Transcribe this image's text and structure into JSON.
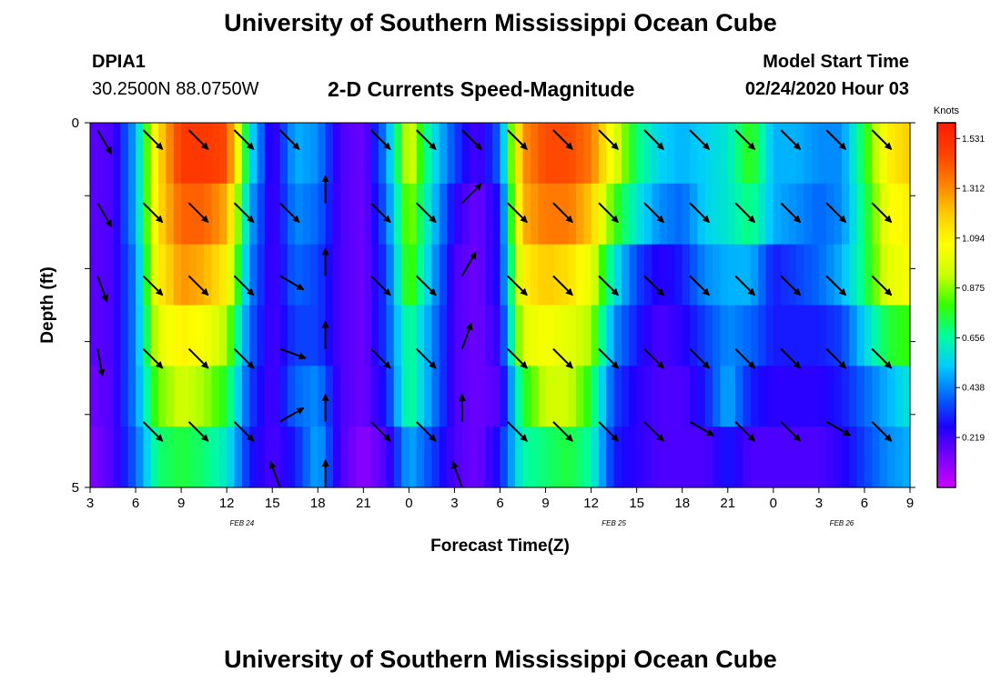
{
  "header": {
    "title": "University of Southern Mississippi Ocean Cube",
    "station_id": "DPIA1",
    "coords": "30.2500N 88.0750W",
    "chart_title": "2-D Currents Speed-Magnitude",
    "model_label": "Model Start Time",
    "model_time": "02/24/2020 Hour 03"
  },
  "footer": {
    "title": "University of Southern Mississippi Ocean Cube"
  },
  "chart_data": {
    "type": "heatmap",
    "title": "2-D Currents Speed-Magnitude",
    "xlabel": "Forecast Time(Z)",
    "ylabel": "Depth (ft)",
    "x_ticks": [
      "3",
      "6",
      "9",
      "12",
      "15",
      "18",
      "21",
      "0",
      "3",
      "6",
      "9",
      "12",
      "15",
      "18",
      "21",
      "0",
      "3",
      "6",
      "9"
    ],
    "x_hours": [
      0,
      3,
      6,
      9,
      12,
      15,
      18,
      21,
      24,
      27,
      30,
      33,
      36,
      39,
      42,
      45,
      48,
      51,
      54
    ],
    "x_range": [
      0,
      54
    ],
    "date_labels": [
      {
        "text": "FEB 24",
        "hour": 10
      },
      {
        "text": "FEB 25",
        "hour": 34.5
      },
      {
        "text": "FEB 26",
        "hour": 49.5
      }
    ],
    "y_range": [
      0,
      5
    ],
    "y_tick_labels": [
      "0",
      "5"
    ],
    "y_minor_ticks": [
      1,
      2,
      3,
      4
    ],
    "colorbar": {
      "unit": "Knots",
      "range": [
        0,
        1.6
      ],
      "labels": [
        "1.531",
        "1.312",
        "1.094",
        "0.875",
        "0.656",
        "0.438",
        "0.219"
      ],
      "label_values": [
        1.531,
        1.312,
        1.094,
        0.875,
        0.656,
        0.438,
        0.219
      ],
      "palette": [
        "#cc00ff",
        "#7a00ff",
        "#1e00ff",
        "#0066ff",
        "#00ccff",
        "#00ff99",
        "#33ff00",
        "#ccff00",
        "#ffff00",
        "#ffcc00",
        "#ff8000",
        "#ff4000",
        "#ff1a00"
      ]
    },
    "layer_depths_ft": [
      0.25,
      1.25,
      2.25,
      3.25,
      4.25,
      4.85
    ],
    "speed_hour_keys": [
      0,
      1.5,
      3,
      4.5,
      6,
      7.5,
      9,
      10.5,
      12,
      13.5,
      15,
      16.5,
      18,
      19.5,
      21,
      22.5,
      24,
      25.5,
      27,
      28.5,
      30,
      31.5,
      33,
      34.5,
      36,
      37.5,
      39,
      40.5,
      42,
      43.5,
      45,
      46.5,
      48,
      49.5,
      51,
      52.5,
      54
    ],
    "speed_knots": [
      [
        0.18,
        0.2,
        0.5,
        1.15,
        1.5,
        1.5,
        1.45,
        0.6,
        0.2,
        0.5,
        0.45,
        0.2,
        0.15,
        0.45,
        1.0,
        0.6,
        0.35,
        0.2,
        0.4,
        1.3,
        1.45,
        1.45,
        1.35,
        1.0,
        0.7,
        0.55,
        0.5,
        0.55,
        0.6,
        0.8,
        0.5,
        0.5,
        0.45,
        0.45,
        0.75,
        1.1,
        1.2
      ],
      [
        0.18,
        0.2,
        0.5,
        1.15,
        1.4,
        1.4,
        1.25,
        0.5,
        0.2,
        0.45,
        0.4,
        0.2,
        0.15,
        0.4,
        0.9,
        0.55,
        0.25,
        0.15,
        0.3,
        1.25,
        1.35,
        1.35,
        1.2,
        0.8,
        0.6,
        0.45,
        0.4,
        0.55,
        0.6,
        0.7,
        0.5,
        0.45,
        0.4,
        0.45,
        0.7,
        1.05,
        1.1
      ],
      [
        0.18,
        0.2,
        0.45,
        1.1,
        1.3,
        1.25,
        1.1,
        0.45,
        0.2,
        0.4,
        0.35,
        0.2,
        0.15,
        0.35,
        0.85,
        0.5,
        0.2,
        0.15,
        0.3,
        1.1,
        1.2,
        1.15,
        1.0,
        0.6,
        0.35,
        0.25,
        0.3,
        0.45,
        0.5,
        0.5,
        0.3,
        0.35,
        0.4,
        0.5,
        0.7,
        1.0,
        1.05
      ],
      [
        0.18,
        0.2,
        0.45,
        1.0,
        1.1,
        1.05,
        0.9,
        0.4,
        0.2,
        0.35,
        0.35,
        0.2,
        0.15,
        0.35,
        0.7,
        0.45,
        0.2,
        0.15,
        0.25,
        1.0,
        1.05,
        1.0,
        0.9,
        0.45,
        0.3,
        0.2,
        0.25,
        0.35,
        0.45,
        0.4,
        0.3,
        0.3,
        0.3,
        0.35,
        0.55,
        0.75,
        0.8
      ],
      [
        0.15,
        0.2,
        0.45,
        0.85,
        0.95,
        0.9,
        0.75,
        0.35,
        0.2,
        0.4,
        0.45,
        0.2,
        0.15,
        0.3,
        0.7,
        0.45,
        0.2,
        0.15,
        0.2,
        0.75,
        0.95,
        0.95,
        0.75,
        0.35,
        0.25,
        0.2,
        0.2,
        0.3,
        0.5,
        0.3,
        0.25,
        0.25,
        0.25,
        0.3,
        0.4,
        0.5,
        0.6
      ],
      [
        0.12,
        0.2,
        0.4,
        0.7,
        0.75,
        0.7,
        0.6,
        0.3,
        0.2,
        0.3,
        0.5,
        0.2,
        0.1,
        0.2,
        0.5,
        0.35,
        0.2,
        0.15,
        0.3,
        0.65,
        0.7,
        0.75,
        0.65,
        0.3,
        0.25,
        0.2,
        0.2,
        0.2,
        0.3,
        0.2,
        0.2,
        0.2,
        0.2,
        0.25,
        0.35,
        0.45,
        0.5
      ]
    ],
    "arrow_columns_hours": [
      0.5,
      3.5,
      6.5,
      9.5,
      12.5,
      15.5,
      18.5,
      21.5,
      24.5,
      27.5,
      30.5,
      33.5,
      36.5,
      39.5,
      42.5,
      45.5,
      48.5,
      51.5
    ],
    "arrow_rows_ft": [
      0.1,
      1.1,
      2.1,
      3.1,
      4.1,
      5.0
    ],
    "arrow_direction_deg": [
      [
        150,
        135,
        135,
        135,
        135,
        null,
        135,
        135,
        135,
        135,
        135,
        135,
        135,
        135,
        135,
        135,
        135,
        135
      ],
      [
        150,
        135,
        135,
        135,
        135,
        0,
        135,
        135,
        45,
        135,
        135,
        135,
        135,
        135,
        135,
        135,
        135,
        135
      ],
      [
        160,
        135,
        135,
        135,
        120,
        0,
        135,
        135,
        30,
        135,
        135,
        135,
        135,
        135,
        135,
        135,
        135,
        135
      ],
      [
        170,
        135,
        135,
        135,
        110,
        0,
        135,
        135,
        20,
        135,
        135,
        135,
        135,
        135,
        135,
        135,
        135,
        135
      ],
      [
        null,
        135,
        135,
        135,
        60,
        0,
        135,
        135,
        0,
        135,
        135,
        135,
        135,
        120,
        135,
        135,
        120,
        135
      ],
      [
        null,
        null,
        null,
        null,
        -20,
        0,
        null,
        null,
        -20,
        null,
        null,
        null,
        null,
        null,
        null,
        null,
        null,
        null
      ]
    ]
  }
}
